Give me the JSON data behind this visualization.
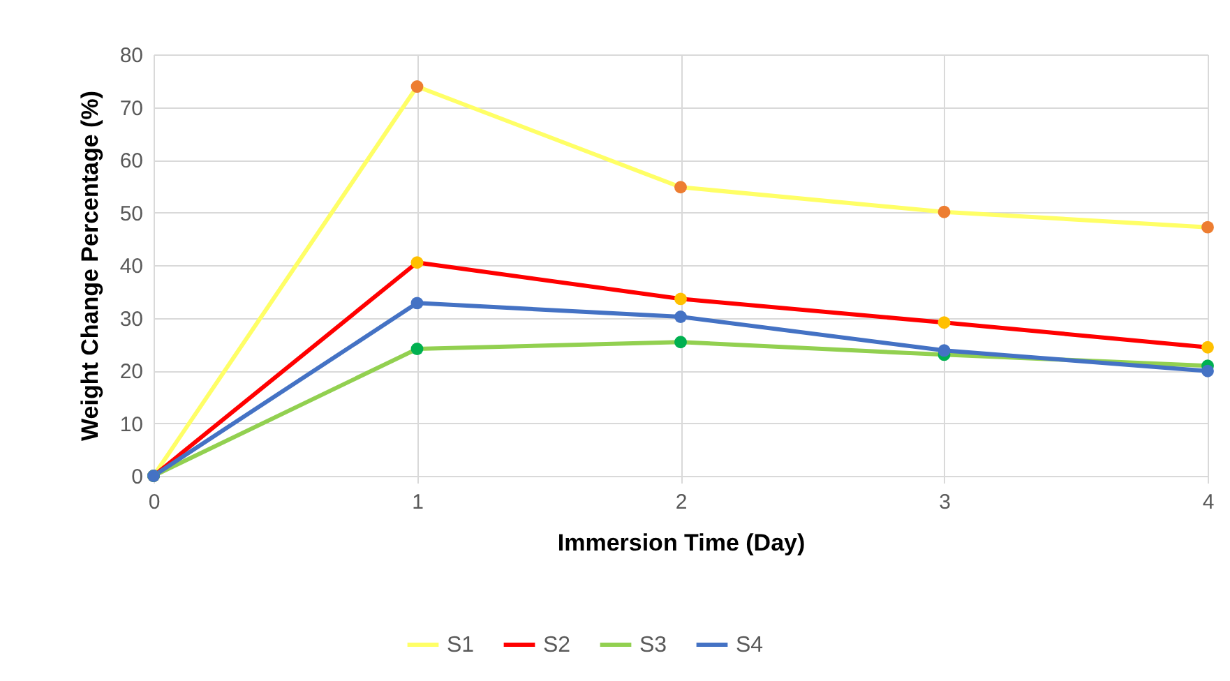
{
  "chart_data": {
    "type": "line",
    "xlabel": "Immersion Time (Day)",
    "ylabel": "Weight Change Percentage (%)",
    "x": [
      0,
      1,
      2,
      3,
      4
    ],
    "series": [
      {
        "name": "S1",
        "color": "#ffff66",
        "colors": [
          "#ed7d31",
          "#ed7d31",
          "#ed7d31",
          "#ed7d31",
          "#ed7d31"
        ],
        "values": [
          0,
          73.9,
          54.8,
          50.1,
          47.2
        ]
      },
      {
        "name": "S2",
        "color": "#ff0000",
        "colors": [
          "#ffc000",
          "#ffc000",
          "#ffc000",
          "#ffc000",
          "#ffc000"
        ],
        "values": [
          0,
          40.5,
          33.6,
          29.1,
          24.4
        ]
      },
      {
        "name": "S3",
        "color": "#92d050",
        "colors": [
          "#00b050",
          "#00b050",
          "#00b050",
          "#00b050",
          "#00b050"
        ],
        "values": [
          0,
          24.1,
          25.4,
          23.0,
          20.9
        ]
      },
      {
        "name": "S4",
        "color": "#4472c4",
        "colors": [
          "#4472c4",
          "#4472c4",
          "#4472c4",
          "#4472c4",
          "#4472c4"
        ],
        "values": [
          0,
          32.8,
          30.2,
          23.8,
          19.9
        ]
      }
    ],
    "xlim": [
      0,
      4
    ],
    "xticks": [
      0,
      1,
      2,
      3,
      4
    ],
    "ylim": [
      0,
      80
    ],
    "yticks": [
      0,
      10,
      20,
      30,
      40,
      50,
      60,
      70,
      80
    ],
    "grid": true,
    "legend": "bottom",
    "marker": "circle",
    "line_style": "solid"
  }
}
